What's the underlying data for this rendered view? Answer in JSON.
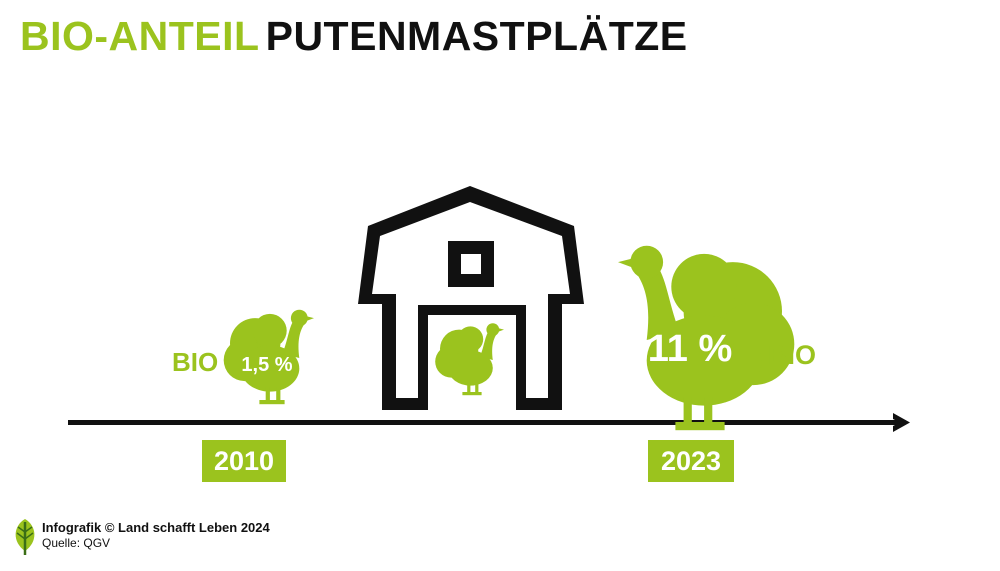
{
  "title": {
    "highlight": "BIO-ANTEIL",
    "rest": "PUTENMASTPLÄTZE"
  },
  "colors": {
    "accent": "#9bc31e",
    "ink": "#111111",
    "background": "#ffffff"
  },
  "timeline": {
    "start": {
      "year": "2010",
      "label": "BIO",
      "percent": "1,5 %"
    },
    "end": {
      "year": "2023",
      "label": "BIO",
      "percent": "11 %"
    }
  },
  "icons": {
    "barn": "barn-icon",
    "turkey": "turkey-icon",
    "logo": "leaf-logo-icon",
    "arrow": "arrow-right-icon"
  },
  "footer": {
    "credit": "Infografik © Land schafft Leben 2024",
    "source": "Quelle: QGV"
  }
}
